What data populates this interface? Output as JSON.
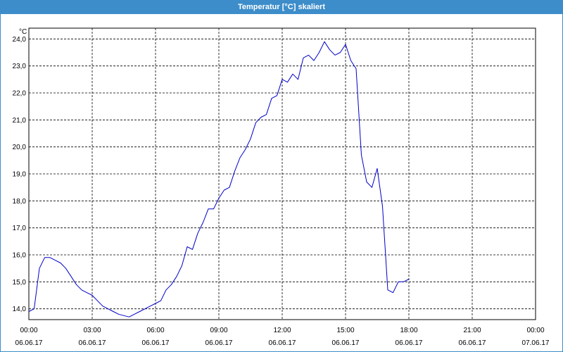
{
  "window": {
    "title": "Temperatur [°C] skaliert"
  },
  "colors": {
    "titlebar": "#3c8dc9",
    "line": "#0000c8",
    "grid": "#000000"
  },
  "chart_data": {
    "type": "line",
    "title": "Temperatur [°C] skaliert",
    "ylabel": "°C",
    "xlabel": "",
    "grid": true,
    "ylim": [
      13.6,
      24.4
    ],
    "xlim": [
      "2017-06-06 00:00",
      "2017-06-07 00:00"
    ],
    "y_ticks": [
      "14,0",
      "15,0",
      "16,0",
      "17,0",
      "18,0",
      "19,0",
      "20,0",
      "21,0",
      "22,0",
      "23,0",
      "24,0"
    ],
    "x_ticks": [
      {
        "time": "00:00",
        "date": "06.06.17"
      },
      {
        "time": "03:00",
        "date": "06.06.17"
      },
      {
        "time": "06:00",
        "date": "06.06.17"
      },
      {
        "time": "09:00",
        "date": "06.06.17"
      },
      {
        "time": "12:00",
        "date": "06.06.17"
      },
      {
        "time": "15:00",
        "date": "06.06.17"
      },
      {
        "time": "18:00",
        "date": "06.06.17"
      },
      {
        "time": "21:00",
        "date": "06.06.17"
      },
      {
        "time": "00:00",
        "date": "07.06.17"
      }
    ],
    "series": [
      {
        "x": [
          "00:00",
          "00:15",
          "00:30",
          "00:45",
          "01:00",
          "01:15",
          "01:30",
          "01:45",
          "02:00",
          "02:15",
          "02:30",
          "02:45",
          "03:00",
          "03:15",
          "03:30",
          "03:45",
          "04:00",
          "04:15",
          "04:30",
          "04:45",
          "05:00",
          "05:15",
          "05:30",
          "05:45",
          "06:00",
          "06:15",
          "06:30",
          "06:45",
          "07:00",
          "07:15",
          "07:30",
          "07:45",
          "08:00",
          "08:15",
          "08:30",
          "08:45",
          "09:00",
          "09:15",
          "09:30",
          "09:45",
          "10:00",
          "10:15",
          "10:30",
          "10:45",
          "11:00",
          "11:15",
          "11:30",
          "11:45",
          "12:00",
          "12:15",
          "12:30",
          "12:45",
          "13:00",
          "13:15",
          "13:30",
          "13:45",
          "14:00",
          "14:15",
          "14:30",
          "14:45",
          "15:00",
          "15:15",
          "15:30",
          "15:45",
          "16:00",
          "16:15",
          "16:30",
          "16:45",
          "17:00",
          "17:15",
          "17:30",
          "17:45",
          "18:00"
        ],
        "y": [
          13.9,
          14.0,
          15.5,
          15.9,
          15.9,
          15.8,
          15.7,
          15.5,
          15.2,
          14.9,
          14.7,
          14.6,
          14.5,
          14.3,
          14.1,
          14.0,
          13.9,
          13.8,
          13.75,
          13.7,
          13.8,
          13.9,
          14.0,
          14.1,
          14.2,
          14.3,
          14.7,
          14.9,
          15.2,
          15.6,
          16.3,
          16.2,
          16.8,
          17.2,
          17.7,
          17.7,
          18.1,
          18.4,
          18.5,
          19.1,
          19.6,
          19.9,
          20.3,
          20.9,
          21.1,
          21.2,
          21.8,
          21.9,
          22.5,
          22.4,
          22.7,
          22.5,
          23.3,
          23.4,
          23.2,
          23.5,
          23.9,
          23.6,
          23.4,
          23.5,
          23.8,
          23.2,
          22.9,
          19.7,
          18.7,
          18.5,
          19.2,
          17.8,
          14.7,
          14.6,
          15.0,
          15.0,
          15.1
        ]
      }
    ]
  }
}
